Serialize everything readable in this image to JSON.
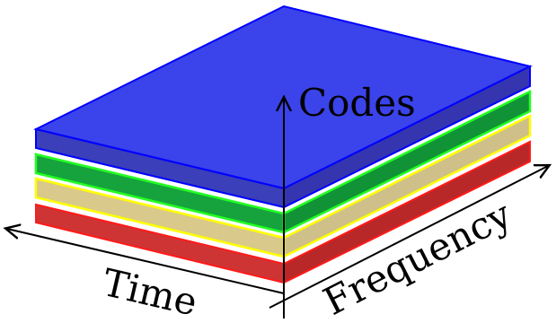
{
  "diagram": {
    "axes": {
      "codes": "Codes",
      "time": "Time",
      "frequency": "Frequency"
    },
    "layers": [
      {
        "name": "red-layer",
        "top": "#e23b3b",
        "side": "#c42a2a",
        "edge": "#ff0000"
      },
      {
        "name": "yellow-layer",
        "top": "#e6d36a",
        "side": "#d8c889",
        "edge": "#ffff00"
      },
      {
        "name": "green-layer",
        "top": "#22b24a",
        "side": "#169a3a",
        "edge": "#00ff00"
      },
      {
        "name": "blue-layer",
        "top": "#3c45e8",
        "side": "#3535b4",
        "edge": "#0000ff"
      }
    ],
    "colors": {
      "axis": "#000000",
      "background": "#ffffff"
    }
  }
}
